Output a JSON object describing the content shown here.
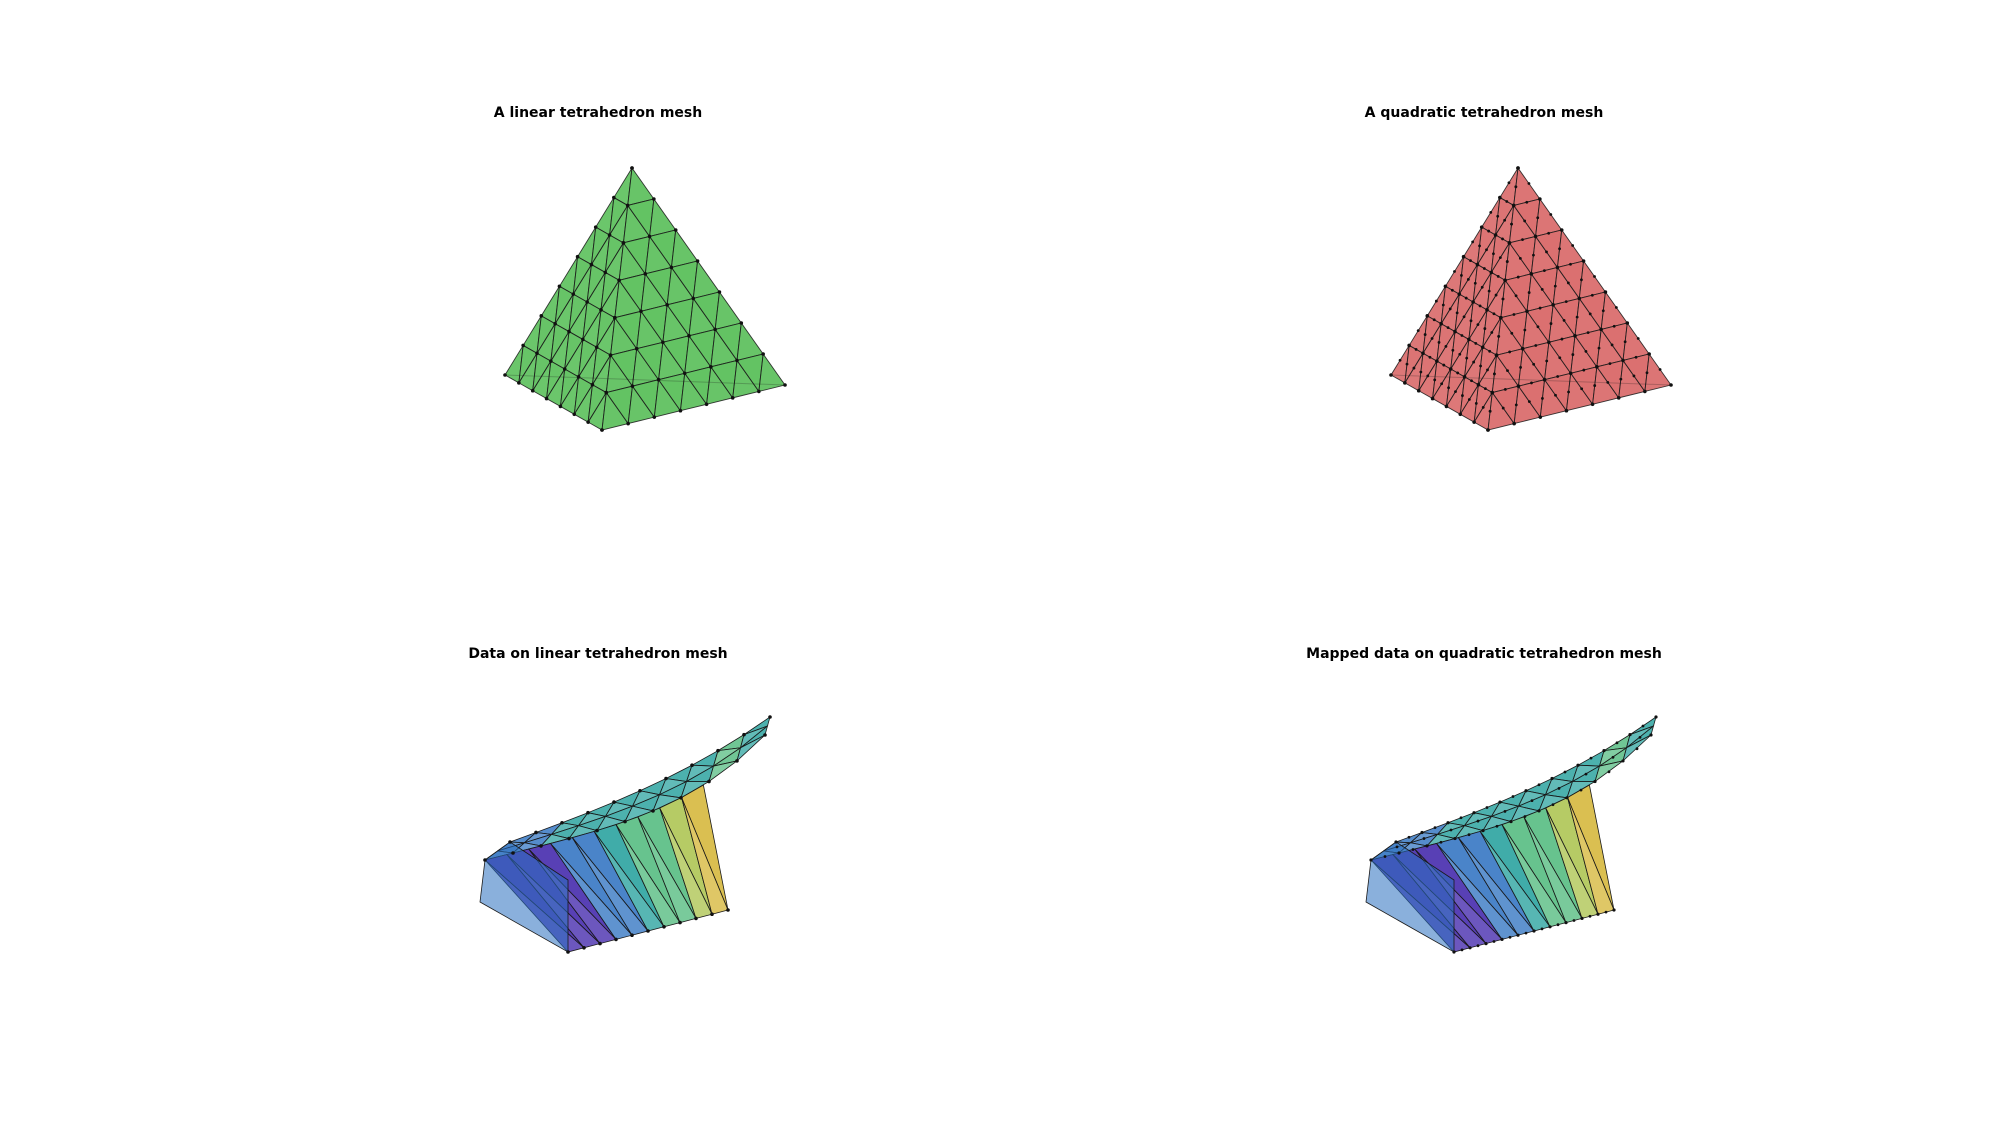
{
  "figure": {
    "panels": [
      {
        "id": "linear-mesh",
        "title": "A linear tetrahedron mesh",
        "face_color": "#5cc05c",
        "edge_color": "#1a1a1a"
      },
      {
        "id": "quadratic-mesh",
        "title": "A quadratic tetrahedron mesh",
        "face_color": "#d96a6a",
        "edge_color": "#1a1a1a"
      },
      {
        "id": "data-linear",
        "title": "Data on linear tetrahedron mesh",
        "colormap": [
          "#3b1fa8",
          "#2a6fbf",
          "#1f9e9a",
          "#4cb87a",
          "#a9c24a",
          "#d4b433"
        ]
      },
      {
        "id": "data-quadratic",
        "title": "Mapped data on quadratic tetrahedron mesh",
        "colormap": [
          "#3b1fa8",
          "#2a6fbf",
          "#1f9e9a",
          "#4cb87a",
          "#a9c24a",
          "#d4b433"
        ]
      }
    ]
  }
}
